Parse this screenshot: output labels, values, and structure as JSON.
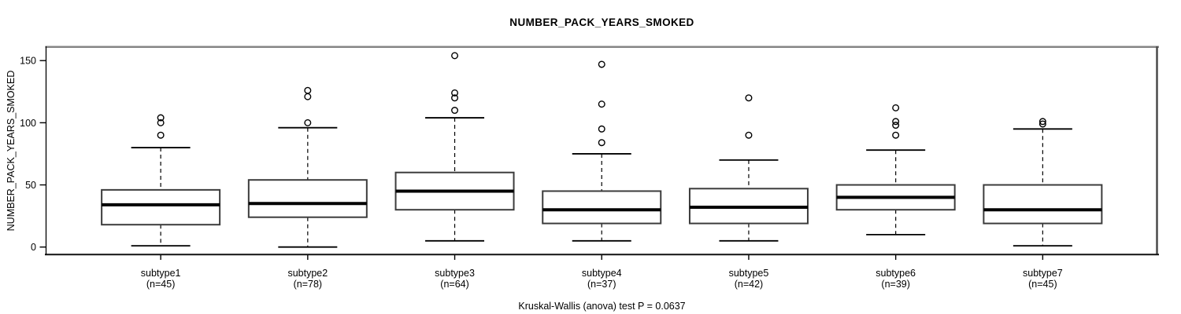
{
  "chart_data": {
    "type": "boxplot",
    "title": "NUMBER_PACK_YEARS_SMOKED",
    "ylabel": "NUMBER_PACK_YEARS_SMOKED",
    "footer": "Kruskal-Wallis (anova) test P = 0.0637",
    "y_ticks": [
      0,
      50,
      100,
      150
    ],
    "ylim": [
      -6.5,
      161.5
    ],
    "grid": false,
    "legend": "none",
    "colors": {
      "box_fill": "#ffffff",
      "line": "#000000",
      "box_stroke": "#3c3c3c",
      "frame_top": "#858585",
      "frame_right": "#4a4a4a",
      "background": "#ffffff"
    },
    "groups": [
      {
        "label": "subtype1",
        "n_label": "(n=45)",
        "n": 45,
        "whisker_low": 1,
        "q1": 18,
        "median": 34,
        "q3": 46,
        "whisker_high": 80,
        "outliers": [
          90,
          100,
          104
        ]
      },
      {
        "label": "subtype2",
        "n_label": "(n=78)",
        "n": 78,
        "whisker_low": 0,
        "q1": 24,
        "median": 35,
        "q3": 54,
        "whisker_high": 96,
        "outliers": [
          100,
          121,
          126
        ]
      },
      {
        "label": "subtype3",
        "n_label": "(n=64)",
        "n": 64,
        "whisker_low": 5,
        "q1": 30,
        "median": 45,
        "q3": 60,
        "whisker_high": 104,
        "outliers": [
          110,
          120,
          124,
          154
        ]
      },
      {
        "label": "subtype4",
        "n_label": "(n=37)",
        "n": 37,
        "whisker_low": 5,
        "q1": 19,
        "median": 30,
        "q3": 45,
        "whisker_high": 75,
        "outliers": [
          84,
          95,
          115,
          147
        ]
      },
      {
        "label": "subtype5",
        "n_label": "(n=42)",
        "n": 42,
        "whisker_low": 5,
        "q1": 19,
        "median": 32,
        "q3": 47,
        "whisker_high": 70,
        "outliers": [
          90,
          120
        ]
      },
      {
        "label": "subtype6",
        "n_label": "(n=39)",
        "n": 39,
        "whisker_low": 10,
        "q1": 30,
        "median": 40,
        "q3": 50,
        "whisker_high": 78,
        "outliers": [
          90,
          98,
          101,
          112
        ]
      },
      {
        "label": "subtype7",
        "n_label": "(n=45)",
        "n": 45,
        "whisker_low": 1,
        "q1": 19,
        "median": 30,
        "q3": 50,
        "whisker_high": 95,
        "outliers": [
          99,
          101
        ]
      }
    ]
  }
}
